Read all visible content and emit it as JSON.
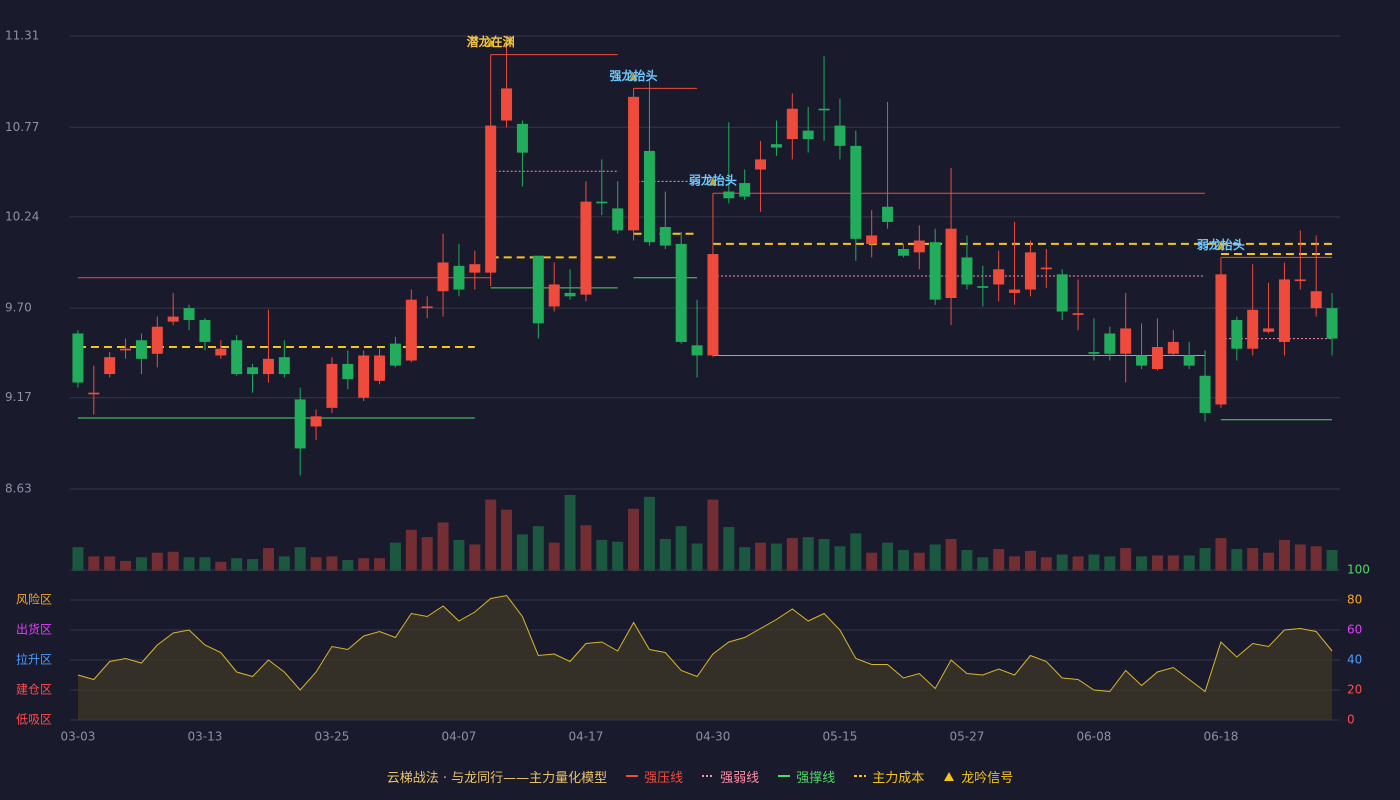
{
  "chart_data": {
    "type": "candlestick",
    "categories": [
      "03-03",
      null,
      null,
      null,
      null,
      null,
      null,
      null,
      "03-13",
      null,
      null,
      null,
      null,
      null,
      null,
      null,
      "03-25",
      null,
      null,
      null,
      null,
      null,
      null,
      null,
      "04-07",
      null,
      null,
      null,
      null,
      null,
      null,
      null,
      "04-17",
      null,
      null,
      null,
      null,
      null,
      null,
      null,
      "04-30",
      null,
      null,
      null,
      null,
      null,
      null,
      null,
      "05-15",
      null,
      null,
      null,
      null,
      null,
      null,
      null,
      "05-27",
      null,
      null,
      null,
      null,
      null,
      null,
      null,
      "06-08",
      null,
      null,
      null,
      null,
      null,
      null,
      null,
      "06-18",
      null,
      null,
      null,
      null,
      null,
      null,
      null
    ],
    "open": [
      9.55,
      9.19,
      9.31,
      9.45,
      9.51,
      9.43,
      9.62,
      9.7,
      9.63,
      9.42,
      9.51,
      9.35,
      9.31,
      9.41,
      9.16,
      9.0,
      9.11,
      9.37,
      9.17,
      9.27,
      9.49,
      9.39,
      9.7,
      9.8,
      9.95,
      9.91,
      9.91,
      10.81,
      10.79,
      10.01,
      9.71,
      9.79,
      9.78,
      10.33,
      10.29,
      10.16,
      10.63,
      10.18,
      10.08,
      9.48,
      9.42,
      10.39,
      10.44,
      10.52,
      10.67,
      10.7,
      10.75,
      10.88,
      10.78,
      10.66,
      10.08,
      10.3,
      10.05,
      10.03,
      10.09,
      9.76,
      10.0,
      9.83,
      9.84,
      9.79,
      9.81,
      9.93,
      9.9,
      9.66,
      9.44,
      9.55,
      9.43,
      9.42,
      9.34,
      9.43,
      9.42,
      9.3,
      9.13,
      9.63,
      9.46,
      9.56,
      9.5,
      9.86,
      9.7,
      9.7
    ],
    "close": [
      9.26,
      9.2,
      9.41,
      9.46,
      9.4,
      9.59,
      9.65,
      9.63,
      9.5,
      9.46,
      9.31,
      9.31,
      9.4,
      9.31,
      8.87,
      9.06,
      9.37,
      9.28,
      9.42,
      9.42,
      9.36,
      9.75,
      9.71,
      9.97,
      9.81,
      9.96,
      10.78,
      11.0,
      10.62,
      9.61,
      9.84,
      9.77,
      10.33,
      10.32,
      10.16,
      10.95,
      10.09,
      10.07,
      9.5,
      9.42,
      10.02,
      10.35,
      10.36,
      10.58,
      10.65,
      10.88,
      10.7,
      10.87,
      10.66,
      10.11,
      10.13,
      10.21,
      10.01,
      10.1,
      9.75,
      10.17,
      9.84,
      9.82,
      9.93,
      9.81,
      10.03,
      9.94,
      9.68,
      9.67,
      9.43,
      9.43,
      9.58,
      9.36,
      9.47,
      9.5,
      9.36,
      9.08,
      9.9,
      9.46,
      9.69,
      9.58,
      9.87,
      9.87,
      9.8,
      9.52
    ],
    "high": [
      9.57,
      9.36,
      9.44,
      9.52,
      9.55,
      9.65,
      9.79,
      9.72,
      9.64,
      9.51,
      9.54,
      9.37,
      9.69,
      9.51,
      9.23,
      9.1,
      9.41,
      9.45,
      9.45,
      9.46,
      9.53,
      9.81,
      9.77,
      10.14,
      10.08,
      10.04,
      11.2,
      11.27,
      10.81,
      10.01,
      9.97,
      9.93,
      10.45,
      10.58,
      10.45,
      11.0,
      11.05,
      10.39,
      10.15,
      9.75,
      10.38,
      10.8,
      10.52,
      10.69,
      10.81,
      10.97,
      10.89,
      11.19,
      10.94,
      10.75,
      10.28,
      10.92,
      10.08,
      10.19,
      10.17,
      10.53,
      10.13,
      9.95,
      10.04,
      10.21,
      10.1,
      10.05,
      9.93,
      9.87,
      9.64,
      9.59,
      9.79,
      9.61,
      9.64,
      9.57,
      9.5,
      9.45,
      10.0,
      9.65,
      9.96,
      9.85,
      9.97,
      10.16,
      10.13,
      9.79
    ],
    "low": [
      9.23,
      9.07,
      9.29,
      9.4,
      9.31,
      9.35,
      9.6,
      9.57,
      9.45,
      9.4,
      9.3,
      9.2,
      9.26,
      9.29,
      8.71,
      8.92,
      9.08,
      9.22,
      9.15,
      9.25,
      9.35,
      9.38,
      9.64,
      9.65,
      9.77,
      9.81,
      9.83,
      10.77,
      10.42,
      9.52,
      9.68,
      9.75,
      9.74,
      10.25,
      10.14,
      10.1,
      10.07,
      10.05,
      9.49,
      9.29,
      9.41,
      10.32,
      10.34,
      10.27,
      10.6,
      10.58,
      10.62,
      10.69,
      10.58,
      9.98,
      10.0,
      10.17,
      10.0,
      9.93,
      9.72,
      9.6,
      9.81,
      9.71,
      9.74,
      9.72,
      9.77,
      9.82,
      9.63,
      9.57,
      9.39,
      9.39,
      9.26,
      9.34,
      9.33,
      9.42,
      9.34,
      9.03,
      9.11,
      9.39,
      9.42,
      9.55,
      9.42,
      9.81,
      9.65,
      9.42
    ],
    "up_color": "#ef4b3c",
    "down_color": "#22ad5c",
    "ylim": [
      8.63,
      11.31
    ],
    "yticks": [
      8.63,
      9.17,
      {
        "value": 9.7,
        "label": "9.70"
      },
      10.24,
      10.77,
      11.31
    ],
    "grid": true,
    "lines": [
      {
        "name": "强压线",
        "color": "#ef4b3c",
        "style": "solid",
        "segments": [
          {
            "start": 0,
            "end": 26,
            "value": 9.88
          },
          {
            "start": 26,
            "end": 34,
            "value": 11.2
          },
          {
            "start": 35,
            "end": 39,
            "value": 11.0
          },
          {
            "start": 40,
            "end": 71,
            "value": 10.38
          },
          {
            "start": 72,
            "end": 79,
            "value": 10.0
          }
        ]
      },
      {
        "name": "强弱线",
        "color": "#ff8fa3",
        "style": "dotted",
        "segments": [
          {
            "start": 26,
            "end": 34,
            "value": 10.51
          },
          {
            "start": 35,
            "end": 39,
            "value": 10.45
          },
          {
            "start": 40,
            "end": 71,
            "value": 9.89
          },
          {
            "start": 72,
            "end": 79,
            "value": 9.52
          }
        ]
      },
      {
        "name": "强撑线",
        "color": "#4cd964",
        "style": "solid",
        "segments": [
          {
            "start": 0,
            "end": 25,
            "value": 9.05
          },
          {
            "start": 26,
            "end": 34,
            "value": 9.82
          },
          {
            "start": 35,
            "end": 39,
            "value": 9.88
          },
          {
            "start": 40,
            "end": 71,
            "value": 9.42
          },
          {
            "start": 72,
            "end": 79,
            "value": 9.04
          }
        ]
      },
      {
        "name": "主力成本",
        "color": "#f5c518",
        "style": "dashed",
        "segments": [
          {
            "start": 0,
            "end": 25,
            "value": 9.47
          },
          {
            "start": 26,
            "end": 34,
            "value": 10.0
          },
          {
            "start": 35,
            "end": 39,
            "value": 10.14
          },
          {
            "start": 40,
            "end": 79,
            "value": 10.08
          },
          {
            "start": 72,
            "end": 79,
            "value": 10.02
          }
        ]
      }
    ],
    "signal_name": "龙吟信号",
    "signal_color": "#f5c518",
    "signals": [
      {
        "index": 26,
        "label": "潜龙在渊",
        "color": "#f5c542"
      },
      {
        "index": 35,
        "label": "强龙抬头",
        "color": "#6ec6ff"
      },
      {
        "index": 40,
        "label": "弱龙抬头",
        "color": "#6ec6ff"
      },
      {
        "index": 72,
        "label": "弱龙抬头",
        "color": "#6ec6ff"
      }
    ],
    "volume": {
      "values": [
        26,
        16,
        16,
        11,
        15,
        20,
        21,
        15,
        15,
        10,
        14,
        13,
        25,
        16,
        26,
        15,
        16,
        12,
        14,
        14,
        31,
        45,
        37,
        53,
        34,
        29,
        78,
        67,
        40,
        49,
        31,
        83,
        50,
        34,
        32,
        68,
        81,
        35,
        49,
        30,
        78,
        48,
        26,
        31,
        30,
        36,
        37,
        35,
        27,
        41,
        20,
        31,
        23,
        20,
        29,
        35,
        23,
        15,
        24,
        16,
        22,
        15,
        18,
        16,
        18,
        16,
        25,
        16,
        17,
        17,
        17,
        25,
        36,
        24,
        25,
        20,
        34,
        29,
        27,
        23
      ]
    },
    "indicator": {
      "values": [
        30,
        27,
        39,
        41,
        38,
        50,
        58,
        60,
        50,
        45,
        32,
        29,
        40,
        32,
        20,
        32,
        49,
        47,
        56,
        59,
        55,
        71,
        69,
        76,
        66,
        72,
        81,
        83,
        69,
        43,
        44,
        39,
        51,
        52,
        46,
        65,
        47,
        45,
        33,
        29,
        44,
        52,
        55,
        61,
        67,
        74,
        66,
        71,
        60,
        41,
        37,
        37,
        28,
        31,
        21,
        40,
        31,
        30,
        34,
        30,
        43,
        39,
        28,
        27,
        20,
        19,
        33,
        23,
        32,
        35,
        27,
        19,
        52,
        42,
        51,
        49,
        60,
        61,
        59,
        46
      ],
      "color": "#d9b52c",
      "ylim": [
        0,
        100
      ],
      "yticks": [
        0,
        20,
        40,
        60,
        80,
        100
      ],
      "ytick_colors": [
        "#ff4d4d",
        "#ff4d4d",
        "#4d9bff",
        "#e040fb",
        "#f5a623",
        "#4cd964"
      ],
      "zones": [
        {
          "value": 80,
          "label": "风险区",
          "color": "#f5a623"
        },
        {
          "value": 60,
          "label": "出货区",
          "color": "#e040fb"
        },
        {
          "value": 40,
          "label": "拉升区",
          "color": "#4d9bff"
        },
        {
          "value": 20,
          "label": "建仓区",
          "color": "#ff4d4d"
        },
        {
          "value": 0,
          "label": "低吸区",
          "color": "#ff4d4d"
        }
      ]
    },
    "legend_title": "云梯战法 · 与龙同行——主力量化模型"
  }
}
